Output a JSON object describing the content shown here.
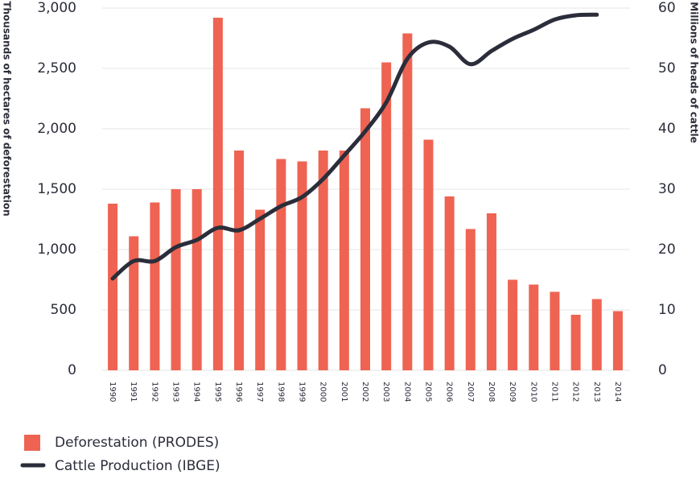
{
  "chart_data": {
    "type": "bar-line",
    "y_label": "Thousands of hectares of deforestation",
    "y2_label": "Millions of heads of cattle",
    "categories": [
      "1990",
      "1991",
      "1992",
      "1993",
      "1994",
      "1995",
      "1996",
      "1997",
      "1998",
      "1999",
      "2000",
      "2001",
      "2002",
      "2003",
      "2004",
      "2005",
      "2006",
      "2007",
      "2008",
      "2009",
      "2010",
      "2011",
      "2012",
      "2013",
      "2014"
    ],
    "series": [
      {
        "name": "Deforestation (PRODES)",
        "color": "#ef6352",
        "type": "bar",
        "values": [
          1380,
          1110,
          1390,
          1500,
          1500,
          2920,
          1820,
          1330,
          1750,
          1730,
          1820,
          1820,
          2170,
          2550,
          2790,
          1910,
          1440,
          1170,
          1300,
          750,
          710,
          650,
          460,
          590,
          490
        ]
      },
      {
        "name": "Cattle Production (IBGE)",
        "color": "#2b2d3a",
        "type": "line",
        "axis": "y2",
        "values": [
          15.2,
          18.1,
          18.1,
          20.4,
          21.6,
          23.6,
          23.2,
          25.1,
          27.2,
          28.7,
          31.7,
          35.6,
          39.6,
          44.4,
          51.6,
          54.3,
          53.6,
          50.7,
          52.9,
          54.9,
          56.4,
          58.1,
          58.8,
          58.9,
          null
        ]
      }
    ],
    "ylim": [
      0,
      3000
    ],
    "yticks": [
      0,
      500,
      {
        "value": 1000,
        "label": "1,000"
      },
      {
        "value": 1500,
        "label": "1,500"
      },
      {
        "value": 2000,
        "label": "2,000"
      },
      {
        "value": 2500,
        "label": "2,500"
      },
      {
        "value": 3000,
        "label": "3,000"
      }
    ],
    "y2lim": [
      0,
      60
    ],
    "y2ticks": [
      0,
      10,
      20,
      30,
      40,
      50,
      60
    ],
    "grid": true
  }
}
